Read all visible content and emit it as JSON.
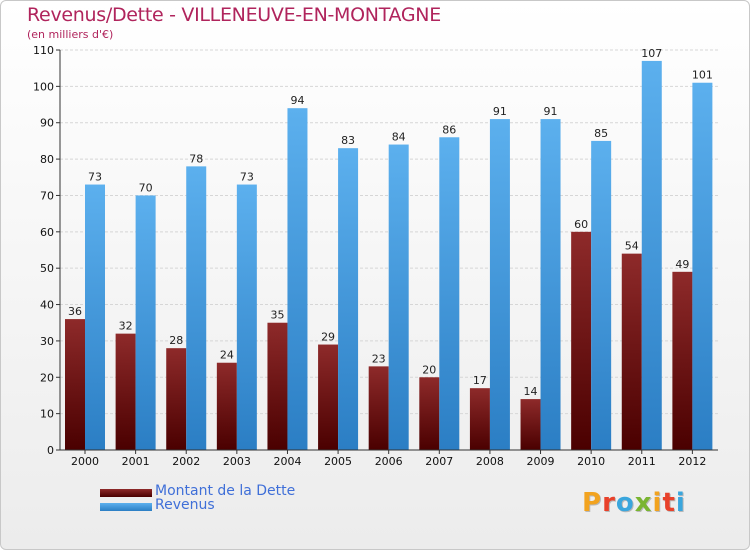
{
  "header": {
    "title": "Revenus/Dette - VILLENEUVE-EN-MONTAGNE",
    "subtitle": "(en milliers d'€)"
  },
  "brand": {
    "letters": [
      "P",
      "r",
      "o",
      "x",
      "i",
      "t",
      "i"
    ],
    "colors": [
      "#f2a31f",
      "#e8412a",
      "#3aa6dd",
      "#7ab531",
      "#f2a31f",
      "#e8412a",
      "#3aa6dd"
    ]
  },
  "chart_data": {
    "type": "bar",
    "title": "Revenus/Dette - VILLENEUVE-EN-MONTAGNE",
    "ylabel": "(en milliers d'€)",
    "xlabel": "",
    "ylim": [
      0,
      110
    ],
    "yticks": [
      0,
      10,
      20,
      30,
      40,
      50,
      60,
      70,
      80,
      90,
      100,
      110
    ],
    "grid": "horizontal",
    "categories": [
      "2000",
      "2001",
      "2002",
      "2003",
      "2004",
      "2005",
      "2006",
      "2007",
      "2008",
      "2009",
      "2010",
      "2011",
      "2012"
    ],
    "series": [
      {
        "name": "Montant de la Dette",
        "color": "#7a1414",
        "values": [
          36,
          32,
          28,
          24,
          35,
          29,
          23,
          20,
          17,
          14,
          60,
          54,
          49
        ]
      },
      {
        "name": "Revenus",
        "color": "#4da3e6",
        "values": [
          73,
          70,
          78,
          73,
          94,
          83,
          84,
          86,
          91,
          91,
          85,
          107,
          101
        ]
      }
    ],
    "legend": "bottom-left"
  }
}
